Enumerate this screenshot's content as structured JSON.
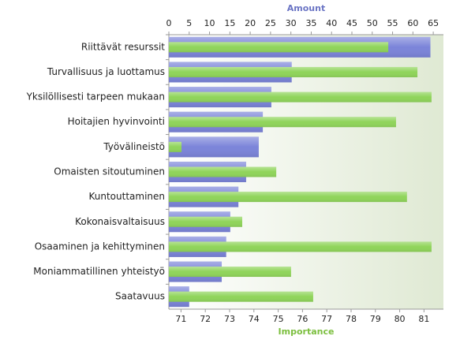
{
  "chart_data": {
    "type": "bar",
    "orientation": "horizontal",
    "categories": [
      "Riittävät resurssit",
      "Turvallisuus ja luottamus",
      "Yksilöllisesti tarpeen mukaan",
      "Hoitajien hyvinvointi",
      "Työvälineistö",
      "Omaisten sitoutuminen",
      "Kuntouttaminen",
      "Kokonaisvaltaisuus",
      "Osaaminen ja kehittyminen",
      "Moniammatillinen yhteistyö",
      "Saatavuus"
    ],
    "x_label": "Amount",
    "x2_label": "Importance",
    "xlim": [
      0,
      67.5
    ],
    "xticks": [
      0,
      5,
      10,
      15,
      20,
      25,
      30,
      35,
      40,
      45,
      50,
      55,
      60,
      65
    ],
    "x2lim": [
      70.5,
      81.8
    ],
    "x2ticks": [
      71,
      72,
      73,
      74,
      75,
      76,
      77,
      78,
      79,
      80,
      81
    ],
    "series": [
      {
        "color": "#7b84d9",
        "values": [
          64.3,
          30.2,
          25.2,
          23.1,
          22.1,
          19.0,
          17.1,
          15.1,
          14.1,
          13.0,
          5.0
        ]
      },
      {
        "color": "#8fd45a",
        "axis": "x2",
        "values": [
          79.53,
          80.73,
          81.31,
          79.85,
          71.02,
          74.92,
          80.3,
          73.52,
          81.31,
          75.53,
          76.44
        ]
      }
    ]
  }
}
